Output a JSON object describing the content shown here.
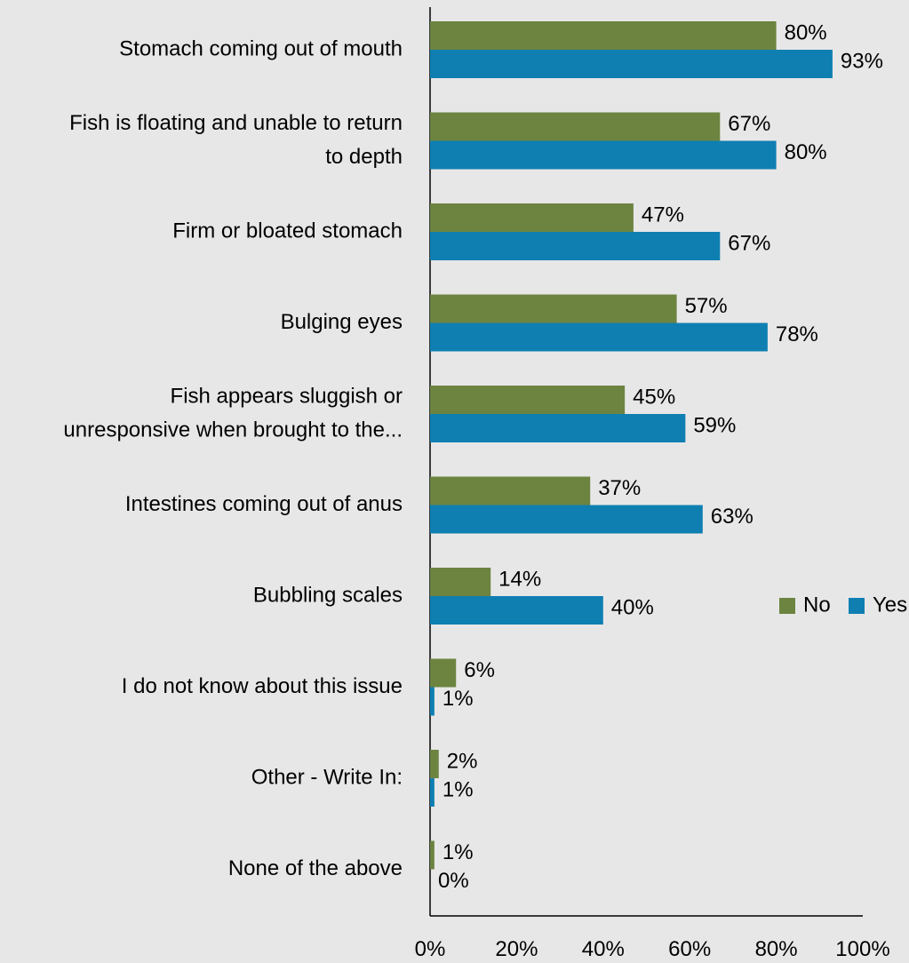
{
  "chart_data": {
    "type": "bar",
    "orientation": "horizontal",
    "categories": [
      [
        "Stomach coming out of mouth"
      ],
      [
        "Fish is floating and unable to return",
        "to depth"
      ],
      [
        "Firm or bloated stomach"
      ],
      [
        "Bulging eyes"
      ],
      [
        "Fish appears sluggish or",
        "unresponsive when brought to the..."
      ],
      [
        "Intestines coming out of anus"
      ],
      [
        "Bubbling scales"
      ],
      [
        "I do not know about this issue"
      ],
      [
        "Other - Write In:"
      ],
      [
        "None of the above"
      ]
    ],
    "series": [
      {
        "name": "No",
        "color": "#6c8440",
        "values": [
          80,
          67,
          47,
          57,
          45,
          37,
          14,
          6,
          2,
          1
        ]
      },
      {
        "name": "Yes",
        "color": "#0f7fb2",
        "values": [
          93,
          80,
          67,
          78,
          59,
          63,
          40,
          1,
          1,
          0
        ]
      }
    ],
    "value_labels": {
      "No": [
        "80%",
        "67%",
        "47%",
        "57%",
        "45%",
        "37%",
        "14%",
        "6%",
        "2%",
        "1%"
      ],
      "Yes": [
        "93%",
        "80%",
        "67%",
        "78%",
        "59%",
        "63%",
        "40%",
        "1%",
        "1%",
        "0%"
      ]
    },
    "xlim": [
      0,
      100
    ],
    "xticks": [
      "0%",
      "20%",
      "40%",
      "60%",
      "80%",
      "100%"
    ],
    "title": "",
    "xlabel": "",
    "ylabel": "",
    "legend": {
      "position": "right",
      "entries": [
        "No",
        "Yes"
      ]
    },
    "grid": false
  }
}
